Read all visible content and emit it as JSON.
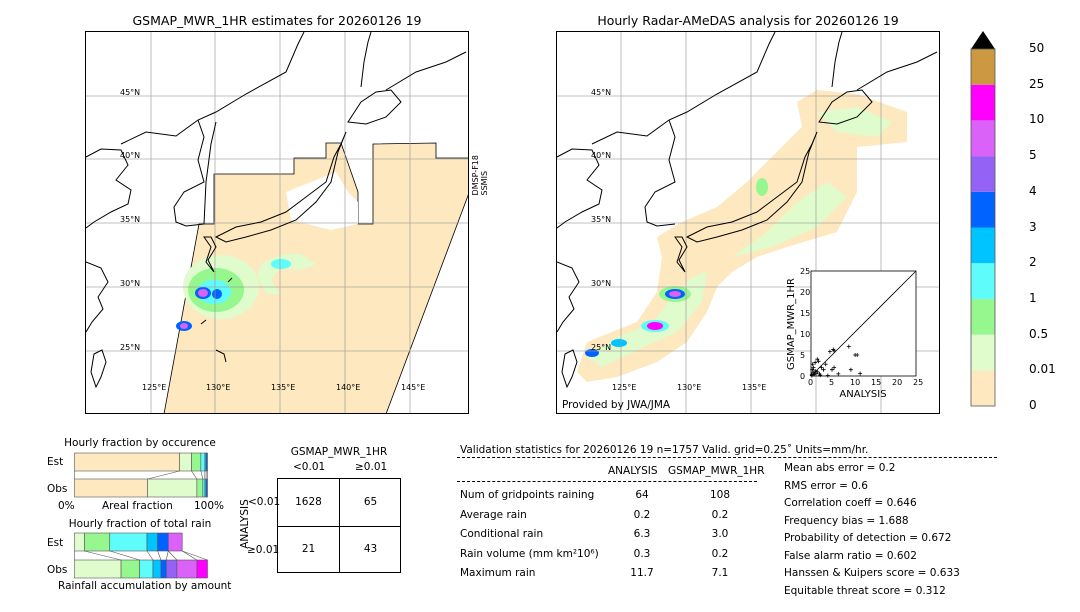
{
  "left_map": {
    "title": "GSMAP_MWR_1HR estimates for 20260126 19",
    "sensor_label": "DMSP-F18\nSSMIS",
    "lat_labels": [
      "45°N",
      "40°N",
      "35°N",
      "30°N",
      "25°N"
    ],
    "lon_labels": [
      "125°E",
      "130°E",
      "135°E",
      "140°E",
      "145°E"
    ]
  },
  "right_map": {
    "title": "Hourly Radar-AMeDAS analysis for 20260126 19",
    "credit": "Provided by JWA/JMA",
    "lat_labels": [
      "45°N",
      "40°N",
      "35°N",
      "30°N",
      "25°N"
    ],
    "lon_labels": [
      "125°E",
      "130°E",
      "135°E"
    ]
  },
  "colorbar": {
    "ticks": [
      "0",
      "0.01",
      "0.5",
      "1",
      "2",
      "3",
      "4",
      "5",
      "10",
      "25",
      "50"
    ],
    "colors": [
      "#fde8c0",
      "#e0fbcc",
      "#96f78f",
      "#5ffcfc",
      "#00c4ff",
      "#0062ff",
      "#9463f5",
      "#da62f8",
      "#ff00ff",
      "#cc9940"
    ],
    "extend_color": "#000000"
  },
  "chart_data": [
    {
      "type": "scatter",
      "xlabel": "ANALYSIS",
      "ylabel": "GSMAP_MWR_1HR",
      "xlim": [
        0,
        25
      ],
      "ylim": [
        0,
        25
      ],
      "xticks": [
        "0",
        "5",
        "10",
        "15",
        "20",
        "25"
      ],
      "yticks": [
        "0",
        "5",
        "10",
        "15",
        "20",
        "25"
      ],
      "diagonal": true,
      "points": [
        [
          0.2,
          0.3
        ],
        [
          0.5,
          0.8
        ],
        [
          0.8,
          0.4
        ],
        [
          1,
          1.2
        ],
        [
          0.3,
          1.5
        ],
        [
          1.2,
          0.6
        ],
        [
          0.6,
          2
        ],
        [
          1.5,
          1
        ],
        [
          2,
          0.5
        ],
        [
          0.4,
          2.8
        ],
        [
          1.8,
          3.5
        ],
        [
          1,
          3.2
        ],
        [
          2.5,
          2
        ],
        [
          3,
          1.5
        ],
        [
          2.2,
          0.2
        ],
        [
          4,
          0.1
        ],
        [
          5,
          1.5
        ],
        [
          5.5,
          2
        ],
        [
          6.5,
          0.5
        ],
        [
          4.5,
          5.8
        ],
        [
          5.5,
          6
        ],
        [
          5.3,
          6.3
        ],
        [
          9,
          7
        ],
        [
          9.5,
          1.5
        ],
        [
          10.5,
          5
        ],
        [
          11,
          5
        ],
        [
          11.7,
          0.6
        ],
        [
          3.5,
          2.8
        ],
        [
          1.5,
          4
        ],
        [
          0.2,
          0.1
        ]
      ]
    },
    {
      "type": "bar",
      "title": "Hourly fraction by occurence",
      "xlabel": "Areal fraction",
      "xtick_labels": [
        "0%",
        "100%"
      ],
      "categories": [
        "Est",
        "Obs"
      ],
      "series_colors": [
        "#fde8c0",
        "#e0fbcc",
        "#96f78f",
        "#5ffcfc",
        "#00c4ff",
        "#0062ff",
        "#1a1a6e"
      ],
      "series": [
        {
          "values": [
            79,
            55
          ]
        },
        {
          "values": [
            9,
            37
          ]
        },
        {
          "values": [
            7,
            4.5
          ]
        },
        {
          "values": [
            3,
            1.5
          ]
        },
        {
          "values": [
            1,
            1
          ]
        },
        {
          "values": [
            1,
            1
          ]
        }
      ]
    },
    {
      "type": "bar",
      "title": "Hourly fraction of total rain",
      "xlabel": "Rainfall accumulation by amount",
      "categories": [
        "Est",
        "Obs"
      ],
      "series_colors": [
        "#e0fbcc",
        "#96f78f",
        "#5ffcfc",
        "#00c4ff",
        "#0062ff",
        "#9463f5",
        "#da62f8",
        "#ff00ff"
      ],
      "series": [
        {
          "values": [
            7.5,
            35
          ]
        },
        {
          "values": [
            19,
            14
          ]
        },
        {
          "values": [
            28,
            10
          ]
        },
        {
          "values": [
            8,
            6
          ]
        },
        {
          "values": [
            8,
            4
          ]
        },
        {
          "values": [
            0,
            8
          ]
        },
        {
          "values": [
            10.5,
            15
          ]
        },
        {
          "values": [
            0,
            8
          ]
        }
      ]
    }
  ],
  "contingency": {
    "col_title": "GSMAP_MWR_1HR",
    "col_labels": [
      "<0.01",
      "≥0.01"
    ],
    "row_title": "ANALYSIS",
    "row_labels": [
      "<0.01",
      "≥0.01"
    ],
    "cells": [
      [
        "1628",
        "65"
      ],
      [
        "21",
        "43"
      ]
    ]
  },
  "stats": {
    "header": "Validation statistics for 20260126 19  n=1757 Valid. grid=0.25˚ Units=mm/hr.",
    "col_analysis": "ANALYSIS",
    "col_gsmap": "GSMAP_MWR_1HR",
    "rows": [
      {
        "label": "Num of gridpoints raining",
        "analysis": "64",
        "gsmap": "108"
      },
      {
        "label": "Average rain",
        "analysis": "0.2",
        "gsmap": "0.2"
      },
      {
        "label": "Conditional rain",
        "analysis": "6.3",
        "gsmap": "3.0"
      },
      {
        "label": "Rain volume (mm km²10⁶)",
        "analysis": "0.3",
        "gsmap": "0.2"
      },
      {
        "label": "Maximum rain",
        "analysis": "11.7",
        "gsmap": "7.1"
      }
    ],
    "scores": [
      "Mean abs error =    0.2",
      "RMS error =    0.6",
      "Correlation coeff =  0.646",
      "Frequency bias =  1.688",
      "Probability of detection =  0.672",
      "False alarm ratio =  0.602",
      "Hanssen & Kuipers score =  0.633",
      "Equitable threat score =  0.312"
    ]
  }
}
